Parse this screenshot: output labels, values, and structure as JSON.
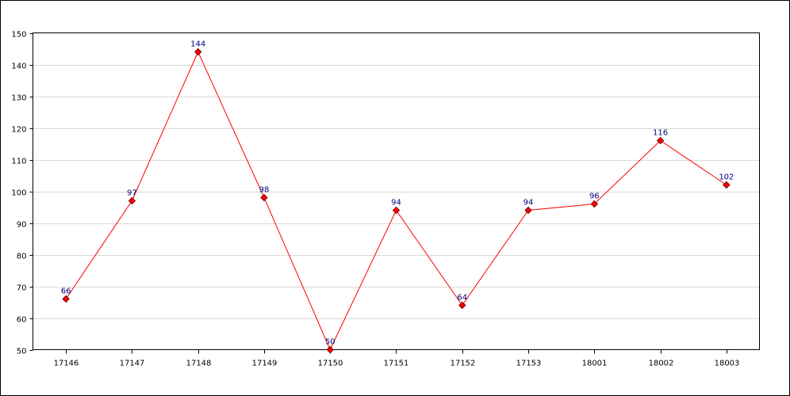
{
  "chart_data": {
    "type": "line",
    "categories": [
      "17146",
      "17147",
      "17148",
      "17149",
      "17150",
      "17151",
      "17152",
      "17153",
      "18001",
      "18002",
      "18003"
    ],
    "series": [
      {
        "values": [
          66,
          97,
          144,
          98,
          50,
          94,
          64,
          94,
          96,
          116,
          102
        ]
      }
    ],
    "ylim": [
      50,
      150
    ],
    "yticks": [
      50,
      60,
      70,
      80,
      90,
      100,
      110,
      120,
      130,
      140,
      150
    ],
    "grid": true,
    "legend": "none",
    "data_labels": true,
    "colors": {
      "line": "#ff0000",
      "marker_fill": "#ff0000",
      "marker_stroke": "#800000",
      "data_label": "#000080",
      "grid": "#d9d9d9"
    }
  }
}
